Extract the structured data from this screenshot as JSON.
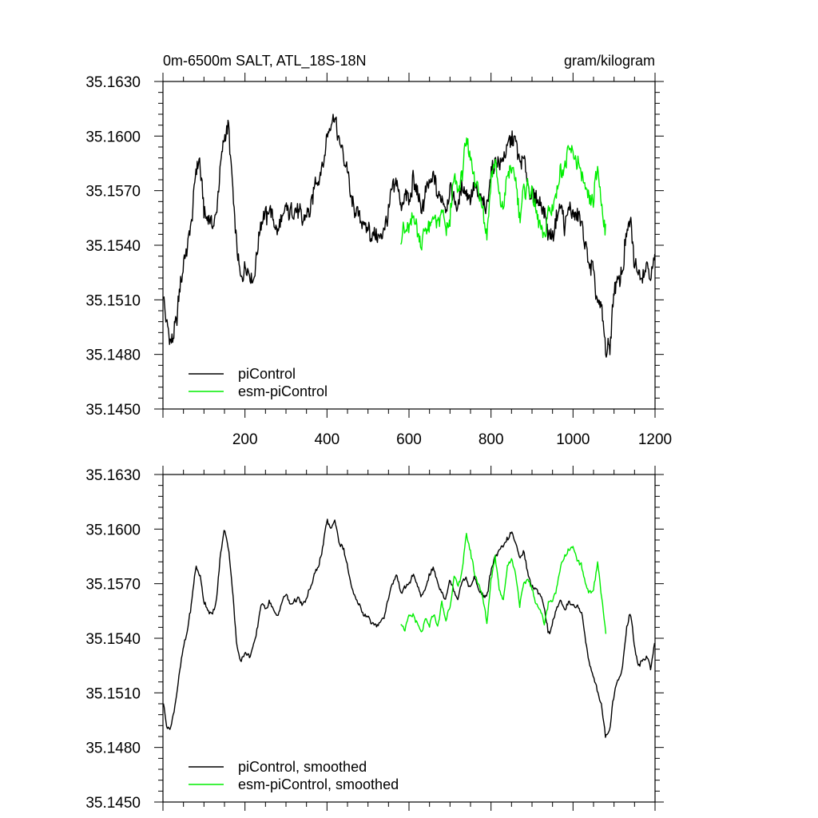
{
  "chart_data": [
    {
      "type": "line",
      "title": "0m-6500m SALT, ATL_18S-18N",
      "units": "gram/kilogram",
      "xlim": [
        0,
        1200
      ],
      "ylim": [
        35.145,
        35.163
      ],
      "x_ticks": [
        200,
        400,
        600,
        800,
        1000,
        1200
      ],
      "y_ticks": [
        "35.1450",
        "35.1480",
        "35.1510",
        "35.1540",
        "35.1570",
        "35.1600",
        "35.1630"
      ],
      "legend_position": "bottom-left",
      "series": [
        {
          "name": "piControl",
          "color": "#000000",
          "x": [
            1,
            10,
            20,
            30,
            40,
            50,
            60,
            70,
            80,
            90,
            100,
            110,
            120,
            130,
            140,
            150,
            160,
            170,
            180,
            190,
            200,
            210,
            220,
            230,
            240,
            250,
            260,
            270,
            280,
            290,
            300,
            310,
            320,
            330,
            340,
            350,
            360,
            370,
            380,
            390,
            400,
            410,
            420,
            430,
            440,
            450,
            460,
            470,
            480,
            490,
            500,
            510,
            520,
            530,
            540,
            550,
            560,
            570,
            580,
            590,
            600,
            610,
            620,
            630,
            640,
            650,
            660,
            670,
            680,
            690,
            700,
            710,
            720,
            730,
            740,
            750,
            760,
            770,
            780,
            790,
            800,
            810,
            820,
            830,
            840,
            850,
            860,
            870,
            880,
            890,
            900,
            910,
            920,
            930,
            940,
            950,
            960,
            970,
            980,
            990,
            1000,
            1010,
            1020,
            1030,
            1040,
            1050,
            1060,
            1070,
            1080,
            1090,
            1100,
            1110,
            1120,
            1130,
            1140,
            1150,
            1160,
            1170,
            1180,
            1190,
            1200
          ],
          "y": [
            35.1515,
            35.1495,
            35.1485,
            35.1495,
            35.1512,
            35.153,
            35.154,
            35.1552,
            35.158,
            35.1585,
            35.156,
            35.1555,
            35.155,
            35.1558,
            35.1585,
            35.16,
            35.1605,
            35.157,
            35.154,
            35.152,
            35.153,
            35.1528,
            35.152,
            35.1535,
            35.1555,
            35.1555,
            35.156,
            35.1553,
            35.1548,
            35.1555,
            35.156,
            35.1558,
            35.1557,
            35.156,
            35.1553,
            35.156,
            35.156,
            35.1575,
            35.1575,
            35.1585,
            35.1598,
            35.1605,
            35.161,
            35.1598,
            35.159,
            35.158,
            35.1565,
            35.1558,
            35.1555,
            35.1552,
            35.155,
            35.1545,
            35.1543,
            35.1545,
            35.1548,
            35.156,
            35.157,
            35.1575,
            35.156,
            35.1568,
            35.1565,
            35.1575,
            35.157,
            35.1558,
            35.1568,
            35.1572,
            35.1578,
            35.1568,
            35.1565,
            35.156,
            35.157,
            35.1565,
            35.156,
            35.1575,
            35.157,
            35.1565,
            35.1572,
            35.1566,
            35.1562,
            35.156,
            35.158,
            35.1585,
            35.1585,
            35.1588,
            35.1595,
            35.16,
            35.1595,
            35.1585,
            35.1588,
            35.1575,
            35.1568,
            35.1565,
            35.1563,
            35.156,
            35.1545,
            35.1545,
            35.1555,
            35.1563,
            35.155,
            35.156,
            35.1555,
            35.1557,
            35.1553,
            35.154,
            35.153,
            35.1525,
            35.1508,
            35.1505,
            35.1482,
            35.1485,
            35.1515,
            35.152,
            35.1525,
            35.1545,
            35.1552,
            35.153,
            35.1525,
            35.1525,
            35.153,
            35.152,
            35.1535
          ]
        },
        {
          "name": "esm-piControl",
          "color": "#00ee00",
          "x": [
            580,
            590,
            600,
            610,
            620,
            630,
            640,
            650,
            660,
            670,
            680,
            690,
            700,
            710,
            720,
            730,
            740,
            750,
            760,
            770,
            780,
            790,
            800,
            810,
            820,
            830,
            840,
            850,
            860,
            870,
            880,
            890,
            900,
            910,
            920,
            930,
            940,
            950,
            960,
            970,
            980,
            990,
            1000,
            1010,
            1020,
            1030,
            1040,
            1050,
            1060,
            1070,
            1080
          ],
          "y": [
            35.1545,
            35.1548,
            35.1552,
            35.1555,
            35.155,
            35.154,
            35.1552,
            35.1548,
            35.1555,
            35.1548,
            35.156,
            35.1545,
            35.1555,
            35.1575,
            35.157,
            35.158,
            35.1598,
            35.159,
            35.1575,
            35.157,
            35.156,
            35.1545,
            35.1575,
            35.1585,
            35.1565,
            35.156,
            35.158,
            35.1582,
            35.1575,
            35.1555,
            35.157,
            35.1572,
            35.1568,
            35.156,
            35.1552,
            35.1545,
            35.156,
            35.156,
            35.157,
            35.158,
            35.1585,
            35.159,
            35.159,
            35.1585,
            35.158,
            35.157,
            35.1565,
            35.1565,
            35.1585,
            35.156,
            35.1545
          ]
        }
      ]
    },
    {
      "type": "line",
      "xlim": [
        0,
        1200
      ],
      "ylim": [
        35.145,
        35.163
      ],
      "y_ticks": [
        "35.1450",
        "35.1480",
        "35.1510",
        "35.1540",
        "35.1570",
        "35.1600",
        "35.1630"
      ],
      "legend_position": "bottom-left",
      "series": [
        {
          "name": "piControl, smoothed",
          "color": "#000000",
          "x": [
            1,
            10,
            20,
            30,
            40,
            50,
            60,
            70,
            80,
            90,
            100,
            110,
            120,
            130,
            140,
            150,
            160,
            170,
            180,
            190,
            200,
            210,
            220,
            230,
            240,
            250,
            260,
            270,
            280,
            290,
            300,
            310,
            320,
            330,
            340,
            350,
            360,
            370,
            380,
            390,
            400,
            410,
            420,
            430,
            440,
            450,
            460,
            470,
            480,
            490,
            500,
            510,
            520,
            530,
            540,
            550,
            560,
            570,
            580,
            590,
            600,
            610,
            620,
            630,
            640,
            650,
            660,
            670,
            680,
            690,
            700,
            710,
            720,
            730,
            740,
            750,
            760,
            770,
            780,
            790,
            800,
            810,
            820,
            830,
            840,
            850,
            860,
            870,
            880,
            890,
            900,
            910,
            920,
            930,
            940,
            950,
            960,
            970,
            980,
            990,
            1000,
            1010,
            1020,
            1030,
            1040,
            1050,
            1060,
            1070,
            1080,
            1090,
            1100,
            1110,
            1120,
            1130,
            1140,
            1150,
            1160,
            1170,
            1180,
            1190,
            1200
          ],
          "y": [
            35.1505,
            35.149,
            35.1492,
            35.1505,
            35.152,
            35.1535,
            35.1545,
            35.156,
            35.158,
            35.1575,
            35.156,
            35.1555,
            35.1552,
            35.156,
            35.1585,
            35.16,
            35.159,
            35.1565,
            35.1535,
            35.1528,
            35.1532,
            35.153,
            35.1535,
            35.1545,
            35.156,
            35.1556,
            35.156,
            35.1555,
            35.1552,
            35.156,
            35.1564,
            35.1558,
            35.156,
            35.1562,
            35.1558,
            35.1562,
            35.1568,
            35.1575,
            35.158,
            35.159,
            35.1605,
            35.16,
            35.1605,
            35.1592,
            35.159,
            35.158,
            35.1568,
            35.1562,
            35.1558,
            35.1553,
            35.1552,
            35.1548,
            35.1546,
            35.155,
            35.1552,
            35.1562,
            35.157,
            35.1575,
            35.1565,
            35.1568,
            35.157,
            35.1575,
            35.157,
            35.1562,
            35.1568,
            35.1575,
            35.1578,
            35.157,
            35.1565,
            35.1562,
            35.1572,
            35.1566,
            35.1562,
            35.1573,
            35.1572,
            35.1568,
            35.1573,
            35.1567,
            35.1563,
            35.1562,
            35.1578,
            35.1585,
            35.1588,
            35.159,
            35.1595,
            35.1598,
            35.1592,
            35.1585,
            35.1588,
            35.1575,
            35.1568,
            35.1566,
            35.1565,
            35.1558,
            35.1542,
            35.1548,
            35.1556,
            35.1562,
            35.1555,
            35.156,
            35.1558,
            35.1557,
            35.1555,
            35.154,
            35.1525,
            35.152,
            35.151,
            35.1503,
            35.1485,
            35.149,
            35.151,
            35.1517,
            35.1522,
            35.1545,
            35.1555,
            35.1535,
            35.1525,
            35.1527,
            35.153,
            35.1523,
            35.154
          ]
        },
        {
          "name": "esm-piControl, smoothed",
          "color": "#00ee00",
          "x": [
            580,
            590,
            600,
            610,
            620,
            630,
            640,
            650,
            660,
            670,
            680,
            690,
            700,
            710,
            720,
            730,
            740,
            750,
            760,
            770,
            780,
            790,
            800,
            810,
            820,
            830,
            840,
            850,
            860,
            870,
            880,
            890,
            900,
            910,
            920,
            930,
            940,
            950,
            960,
            970,
            980,
            990,
            1000,
            1010,
            1020,
            1030,
            1040,
            1050,
            1060,
            1070,
            1080
          ],
          "y": [
            35.1548,
            35.1545,
            35.1552,
            35.1553,
            35.1548,
            35.1543,
            35.155,
            35.1547,
            35.1553,
            35.1546,
            35.156,
            35.155,
            35.1558,
            35.1574,
            35.1568,
            35.1578,
            35.1597,
            35.1588,
            35.1575,
            35.157,
            35.1562,
            35.1548,
            35.1572,
            35.1585,
            35.1568,
            35.156,
            35.158,
            35.1583,
            35.1575,
            35.1558,
            35.157,
            35.1573,
            35.1566,
            35.156,
            35.1555,
            35.1548,
            35.156,
            35.156,
            35.1568,
            35.158,
            35.1585,
            35.1588,
            35.159,
            35.1584,
            35.158,
            35.157,
            35.1565,
            35.1567,
            35.1582,
            35.1562,
            35.1542
          ]
        }
      ]
    }
  ]
}
